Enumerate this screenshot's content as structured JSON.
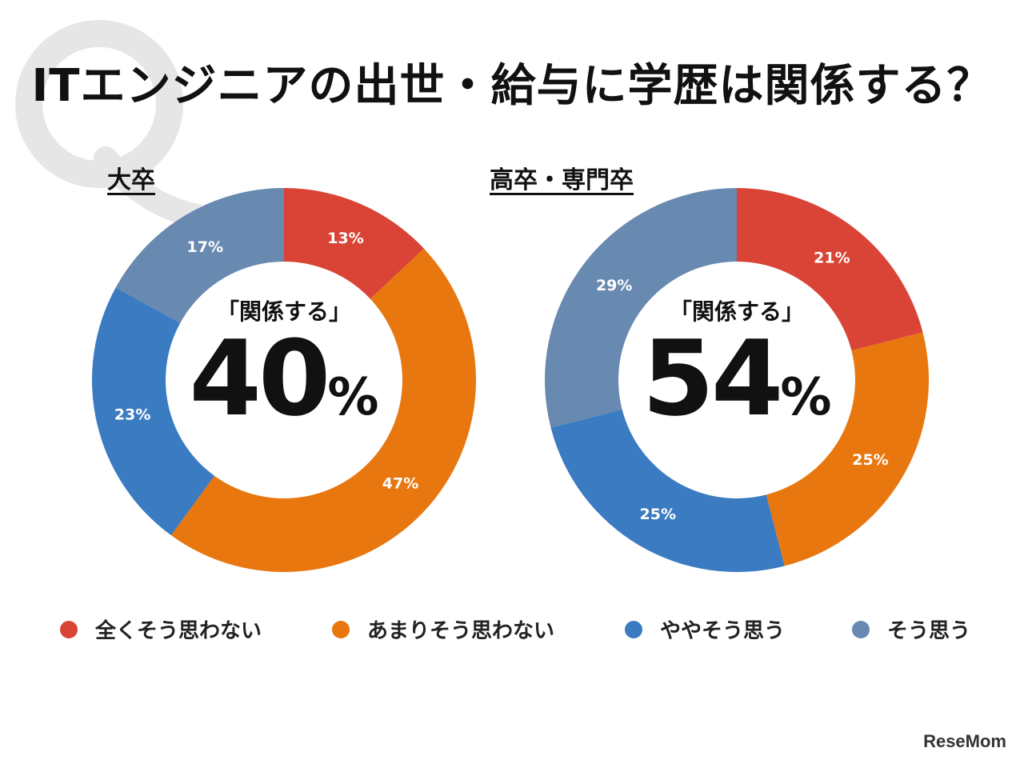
{
  "title": "ITエンジニアの出世・給与に学歴は関係する？",
  "watermark_letter": "Q",
  "brand": "ReseMom",
  "legend": [
    {
      "label": "全くそう思わない",
      "color": "#D94436"
    },
    {
      "label": "あまりそう思わない",
      "color": "#E8770F"
    },
    {
      "label": "ややそう思う",
      "color": "#3A7BC1"
    },
    {
      "label": "そう思う",
      "color": "#6889B0"
    }
  ],
  "chart_data": [
    {
      "type": "pie",
      "title": "大卒",
      "center_caption": "「関係する」",
      "center_value": "40",
      "center_unit": "%",
      "categories": [
        "全くそう思わない",
        "あまりそう思わない",
        "ややそう思う",
        "そう思う"
      ],
      "values": [
        13,
        47,
        23,
        17
      ],
      "labels": [
        "13%",
        "47%",
        "23%",
        "17%"
      ]
    },
    {
      "type": "pie",
      "title": "高卒・専門卒",
      "center_caption": "「関係する」",
      "center_value": "54",
      "center_unit": "%",
      "categories": [
        "全くそう思わない",
        "あまりそう思わない",
        "ややそう思う",
        "そう思う"
      ],
      "values": [
        21,
        25,
        25,
        29
      ],
      "labels": [
        "21%",
        "25%",
        "25%",
        "29%"
      ]
    }
  ]
}
